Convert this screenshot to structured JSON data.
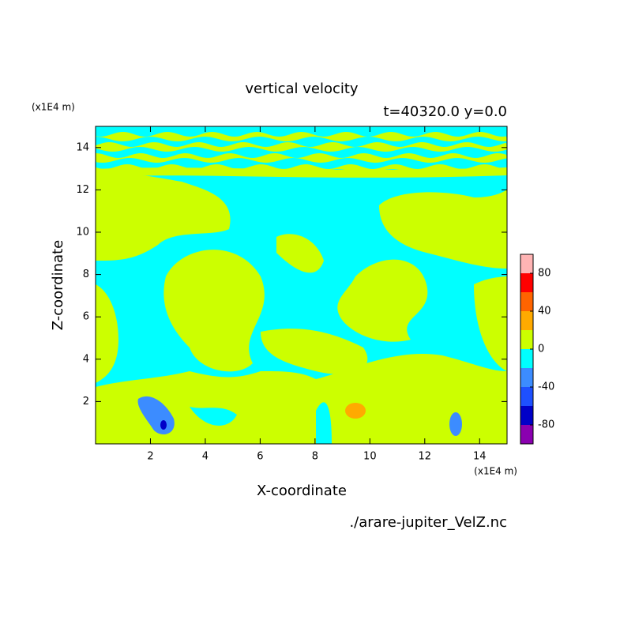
{
  "chart_data": {
    "type": "contour",
    "title": "vertical velocity",
    "subtitle": "t=40320.0 y=0.0",
    "x_label": "X-coordinate",
    "y_label": "Z-coordinate",
    "x_unit": "(x1E4 m)",
    "y_unit": "(x1E4 m)",
    "source": "./arare-jupiter_VelZ.nc",
    "xlim": [
      0,
      15
    ],
    "ylim": [
      0,
      15
    ],
    "xticks": [
      2,
      4,
      6,
      8,
      10,
      12,
      14
    ],
    "yticks": [
      2,
      4,
      6,
      8,
      10,
      12,
      14
    ],
    "levels": [
      -100,
      -80,
      -60,
      -40,
      -20,
      0,
      20,
      40,
      60,
      80,
      100
    ],
    "level_colors": [
      "#8a00b0",
      "#0000c8",
      "#1e50ff",
      "#3c8cff",
      "#00ffff",
      "#ccff00",
      "#ffaa00",
      "#ff6400",
      "#ff0000",
      "#ffb4b4"
    ],
    "colorbar_ticks": [
      -80,
      -40,
      0,
      40,
      80
    ]
  }
}
